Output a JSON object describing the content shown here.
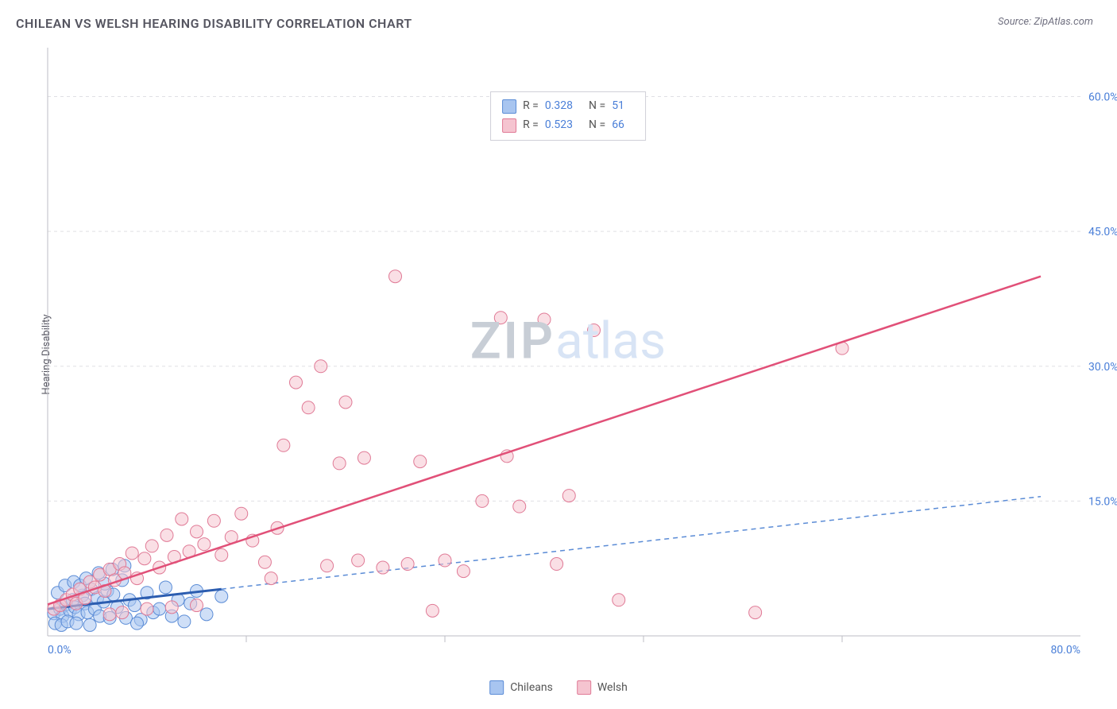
{
  "title": "CHILEAN VS WELSH HEARING DISABILITY CORRELATION CHART",
  "source": "Source: ZipAtlas.com",
  "ylabel": "Hearing Disability",
  "watermark": {
    "part1": "ZIP",
    "part2": "atlas"
  },
  "legend_top": {
    "rows": [
      {
        "swatch_fill": "#a8c5f0",
        "swatch_stroke": "#5b8cd6",
        "r_label": "R =",
        "r_val": "0.328",
        "n_label": "N =",
        "n_val": "51"
      },
      {
        "swatch_fill": "#f5c4d0",
        "swatch_stroke": "#e07a96",
        "r_label": "R =",
        "r_val": "0.523",
        "n_label": "N =",
        "n_val": "66"
      }
    ]
  },
  "legend_bottom": {
    "items": [
      {
        "swatch_fill": "#a8c5f0",
        "swatch_stroke": "#5b8cd6",
        "label": "Chileans"
      },
      {
        "swatch_fill": "#f5c4d0",
        "swatch_stroke": "#e07a96",
        "label": "Welsh"
      }
    ]
  },
  "chart": {
    "type": "scatter",
    "background_color": "#ffffff",
    "grid_color": "#e0e0e4",
    "grid_dash": "4,4",
    "axis_color": "#bcbcc4",
    "tick_color": "#bcbcc4",
    "xlim": [
      0,
      80
    ],
    "ylim": [
      0,
      65
    ],
    "xtick_step": 16,
    "ytick_step": 15,
    "x_origin_label": "0.0%",
    "x_max_label": "80.0%",
    "ytick_labels": [
      "15.0%",
      "30.0%",
      "45.0%",
      "60.0%"
    ],
    "axis_label_color": "#4a7fd8",
    "axis_label_fontsize": 14,
    "marker_radius": 8,
    "marker_opacity": 0.55,
    "series": [
      {
        "name": "Chileans",
        "color_fill": "#a8c5f0",
        "color_stroke": "#5b8cd6",
        "trend": {
          "x1": 0,
          "y1": 3.0,
          "x2": 14,
          "y2": 5.2,
          "extend_x2": 80,
          "extend_y2": 15.5,
          "solid_color": "#2c5db0",
          "dash_color": "#5b8cd6",
          "solid_width": 3,
          "dash": "6,5"
        },
        "points": [
          [
            0.5,
            2.5
          ],
          [
            1,
            3
          ],
          [
            1.2,
            2.2
          ],
          [
            1.5,
            3.5
          ],
          [
            1.8,
            2.8
          ],
          [
            2,
            4
          ],
          [
            2.2,
            3.2
          ],
          [
            2.5,
            2.4
          ],
          [
            2.8,
            4.5
          ],
          [
            3,
            3.6
          ],
          [
            3.2,
            2.6
          ],
          [
            3.5,
            5.2
          ],
          [
            3.8,
            3.0
          ],
          [
            4,
            4.2
          ],
          [
            4.2,
            2.2
          ],
          [
            4.5,
            3.8
          ],
          [
            4.8,
            5.0
          ],
          [
            5,
            2.0
          ],
          [
            5.3,
            4.6
          ],
          [
            5.6,
            3.2
          ],
          [
            6,
            6.2
          ],
          [
            6.3,
            2.0
          ],
          [
            6.6,
            4.0
          ],
          [
            7,
            3.4
          ],
          [
            7.5,
            1.8
          ],
          [
            8,
            4.8
          ],
          [
            8.5,
            2.6
          ],
          [
            9,
            3.0
          ],
          [
            9.5,
            5.4
          ],
          [
            10,
            2.2
          ],
          [
            10.5,
            4.0
          ],
          [
            11,
            1.6
          ],
          [
            11.5,
            3.6
          ],
          [
            12,
            5.0
          ],
          [
            12.8,
            2.4
          ],
          [
            14,
            4.4
          ],
          [
            0.8,
            4.8
          ],
          [
            1.4,
            5.6
          ],
          [
            2.1,
            6.0
          ],
          [
            2.6,
            5.6
          ],
          [
            3.1,
            6.4
          ],
          [
            4.1,
            7.0
          ],
          [
            4.6,
            5.8
          ],
          [
            5.2,
            7.4
          ],
          [
            6.2,
            7.8
          ],
          [
            0.6,
            1.4
          ],
          [
            1.1,
            1.2
          ],
          [
            1.6,
            1.6
          ],
          [
            2.3,
            1.4
          ],
          [
            3.4,
            1.2
          ],
          [
            7.2,
            1.4
          ]
        ]
      },
      {
        "name": "Welsh",
        "color_fill": "#f5c4d0",
        "color_stroke": "#e07a96",
        "trend": {
          "x1": 0,
          "y1": 3.5,
          "x2": 80,
          "y2": 40.0,
          "solid_color": "#e15078",
          "solid_width": 2.5
        },
        "points": [
          [
            0.5,
            3.0
          ],
          [
            1,
            3.4
          ],
          [
            1.5,
            4.0
          ],
          [
            2,
            4.6
          ],
          [
            2.3,
            3.6
          ],
          [
            2.6,
            5.2
          ],
          [
            3,
            4.2
          ],
          [
            3.4,
            6.0
          ],
          [
            3.8,
            5.4
          ],
          [
            4.2,
            6.8
          ],
          [
            4.6,
            5.0
          ],
          [
            5,
            7.4
          ],
          [
            5.4,
            6.2
          ],
          [
            5.8,
            8.0
          ],
          [
            6.2,
            7.0
          ],
          [
            6.8,
            9.2
          ],
          [
            7.2,
            6.4
          ],
          [
            7.8,
            8.6
          ],
          [
            8.4,
            10.0
          ],
          [
            9,
            7.6
          ],
          [
            9.6,
            11.2
          ],
          [
            10.2,
            8.8
          ],
          [
            10.8,
            13.0
          ],
          [
            11.4,
            9.4
          ],
          [
            12,
            11.6
          ],
          [
            12.6,
            10.2
          ],
          [
            13.4,
            12.8
          ],
          [
            14,
            9.0
          ],
          [
            14.8,
            11.0
          ],
          [
            15.6,
            13.6
          ],
          [
            5.0,
            2.4
          ],
          [
            6.0,
            2.6
          ],
          [
            8.0,
            3.0
          ],
          [
            10.0,
            3.2
          ],
          [
            12.0,
            3.4
          ],
          [
            16.5,
            10.6
          ],
          [
            17.5,
            8.2
          ],
          [
            18.5,
            12.0
          ],
          [
            19.0,
            21.2
          ],
          [
            20.0,
            28.2
          ],
          [
            21.0,
            25.4
          ],
          [
            22.0,
            30.0
          ],
          [
            22.5,
            7.8
          ],
          [
            23.5,
            19.2
          ],
          [
            24.0,
            26.0
          ],
          [
            25.0,
            8.4
          ],
          [
            25.5,
            19.8
          ],
          [
            27.0,
            7.6
          ],
          [
            28.0,
            40.0
          ],
          [
            29.0,
            8.0
          ],
          [
            30.0,
            19.4
          ],
          [
            31.0,
            2.8
          ],
          [
            32.0,
            8.4
          ],
          [
            33.5,
            7.2
          ],
          [
            35.0,
            15.0
          ],
          [
            36.5,
            35.4
          ],
          [
            37.0,
            20.0
          ],
          [
            38.0,
            14.4
          ],
          [
            40.0,
            35.2
          ],
          [
            41.0,
            8.0
          ],
          [
            42.0,
            15.6
          ],
          [
            44.0,
            34.0
          ],
          [
            46.0,
            4.0
          ],
          [
            57.0,
            2.6
          ],
          [
            64.0,
            32.0
          ],
          [
            18.0,
            6.4
          ]
        ]
      }
    ]
  }
}
